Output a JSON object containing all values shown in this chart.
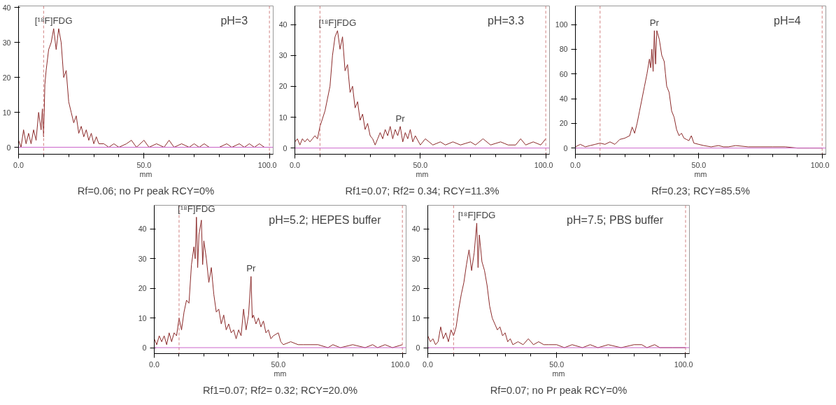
{
  "chart_data": [
    {
      "type": "line",
      "title": "pH=3",
      "xlabel": "mm",
      "xlim": [
        0,
        101.5
      ],
      "ylim": [
        -2,
        40.5
      ],
      "xticks": [
        {
          "value": 0,
          "label": "0.0"
        },
        {
          "value": 50,
          "label": "50.0"
        },
        {
          "value": 100,
          "label": "100.0"
        }
      ],
      "yticks": [
        0,
        10,
        20,
        30,
        40
      ],
      "grid": false,
      "marker": "none",
      "line_style": "solid",
      "series": [
        {
          "color": "#8b2a2a",
          "x": [
            0,
            1,
            2,
            3,
            4,
            5,
            6,
            7,
            8,
            9,
            9.5,
            10,
            10.5,
            11,
            12,
            13,
            14,
            15,
            16,
            17,
            18,
            19,
            20,
            21,
            22,
            23,
            24,
            25,
            26,
            27,
            28,
            29,
            30,
            31,
            32,
            34,
            36,
            38,
            40,
            43,
            45,
            47,
            50,
            52,
            55,
            58,
            60,
            62,
            65,
            68,
            70,
            72,
            74,
            76,
            80,
            83,
            85,
            88,
            90,
            92,
            94,
            96,
            98,
            100
          ],
          "values": [
            2,
            0,
            5,
            1,
            4,
            1,
            5,
            2,
            10,
            5,
            11,
            3,
            18,
            22,
            28,
            30,
            34,
            28,
            34,
            30,
            20,
            22,
            13,
            10,
            7,
            9,
            4,
            6,
            3,
            5,
            2,
            4,
            1,
            3,
            1,
            1,
            0,
            1,
            0,
            1,
            2,
            0,
            2,
            0,
            1,
            0,
            2,
            0,
            1,
            0,
            1,
            0,
            1,
            0,
            0,
            1,
            0,
            1,
            0,
            1,
            0,
            1,
            0,
            0
          ]
        }
      ],
      "ref_lines": [
        {
          "axis": "x",
          "value": 10,
          "color": "#d08080",
          "line_style": "dashed"
        },
        {
          "axis": "x",
          "value": 100,
          "color": "#d08080",
          "line_style": "dashed"
        },
        {
          "axis": "y",
          "value": 0,
          "color": "#cc66cc",
          "line_style": "solid"
        }
      ],
      "annotations": [
        {
          "text": "[¹⁸F]FDG",
          "x": 14,
          "y": 34
        },
        "Rf=0.06; no Pr peak RCY=0%"
      ]
    },
    {
      "type": "line",
      "title": "pH=3.3",
      "xlabel": "mm",
      "xlim": [
        0,
        101.5
      ],
      "ylim": [
        -2,
        46
      ],
      "xticks": [
        {
          "value": 0,
          "label": "0.0"
        },
        {
          "value": 50,
          "label": "50.0"
        },
        {
          "value": 100,
          "label": "100.0"
        }
      ],
      "yticks": [
        0,
        10,
        20,
        30,
        40
      ],
      "grid": false,
      "marker": "none",
      "line_style": "solid",
      "series": [
        {
          "color": "#8b2a2a",
          "x": [
            0,
            1,
            2,
            3,
            4,
            5,
            6,
            7,
            8,
            9,
            10,
            12,
            14,
            15,
            16,
            17,
            18,
            19,
            20,
            21,
            22,
            23,
            24,
            25,
            26,
            27,
            28,
            29,
            30,
            31,
            32,
            33,
            34,
            35,
            36,
            37,
            38,
            39,
            40,
            41,
            42,
            43,
            44,
            45,
            46,
            47,
            48,
            50,
            52,
            55,
            58,
            60,
            63,
            66,
            70,
            72,
            75,
            78,
            82,
            85,
            88,
            90,
            92,
            95,
            98,
            100
          ],
          "values": [
            2,
            3,
            1,
            3,
            2,
            3,
            2,
            3,
            4,
            3,
            7,
            12,
            20,
            30,
            36,
            38,
            32,
            36,
            25,
            27,
            18,
            20,
            13,
            15,
            9,
            11,
            6,
            8,
            4,
            3,
            1,
            3,
            5,
            3,
            6,
            4,
            7,
            3,
            6,
            4,
            7,
            2,
            5,
            3,
            6,
            2,
            4,
            1,
            3,
            1,
            2,
            1,
            2,
            1,
            2,
            1,
            3,
            1,
            2,
            1,
            1,
            3,
            1,
            2,
            1,
            3
          ]
        }
      ],
      "ref_lines": [
        {
          "axis": "x",
          "value": 10,
          "color": "#d08080",
          "line_style": "dashed"
        },
        {
          "axis": "x",
          "value": 100,
          "color": "#d08080",
          "line_style": "dashed"
        },
        {
          "axis": "y",
          "value": 0,
          "color": "#cc66cc",
          "line_style": "solid"
        }
      ],
      "annotations": [
        {
          "text": "[¹⁸F]FDG",
          "x": 17,
          "y": 38
        },
        {
          "text": "Pr",
          "x": 42,
          "y": 7
        },
        "Rf1=0.07; Rf2= 0.34; RCY=11.3%"
      ]
    },
    {
      "type": "line",
      "title": "pH=4",
      "xlabel": "mm",
      "xlim": [
        0,
        101.5
      ],
      "ylim": [
        -5,
        115
      ],
      "xticks": [
        {
          "value": 0,
          "label": "0.0"
        },
        {
          "value": 50,
          "label": "50.0"
        },
        {
          "value": 100,
          "label": "100.0"
        }
      ],
      "yticks": [
        0,
        20,
        40,
        60,
        80,
        100
      ],
      "grid": false,
      "marker": "none",
      "line_style": "solid",
      "series": [
        {
          "color": "#8b2a2a",
          "x": [
            0,
            2,
            4,
            6,
            8,
            10,
            12,
            14,
            16,
            18,
            20,
            22,
            23,
            24,
            25,
            26,
            27,
            28,
            29,
            30,
            30.5,
            31,
            31.5,
            32,
            32.5,
            33,
            34,
            35,
            36,
            36.5,
            37,
            38,
            39,
            40,
            41,
            42,
            43,
            44,
            45,
            46,
            47,
            48,
            50,
            52,
            55,
            58,
            60,
            62,
            65,
            70,
            75,
            80,
            85,
            90,
            95,
            100
          ],
          "values": [
            1,
            3,
            1,
            2,
            3,
            4,
            3,
            5,
            3,
            7,
            8,
            10,
            17,
            12,
            20,
            30,
            40,
            50,
            60,
            72,
            65,
            80,
            62,
            95,
            68,
            95,
            88,
            75,
            70,
            60,
            50,
            45,
            30,
            25,
            15,
            10,
            12,
            8,
            7,
            6,
            10,
            4,
            3,
            2,
            1,
            2,
            1,
            1,
            2,
            1,
            1,
            1,
            1,
            0,
            0,
            0
          ]
        }
      ],
      "ref_lines": [
        {
          "axis": "x",
          "value": 10,
          "color": "#d08080",
          "line_style": "dashed"
        },
        {
          "axis": "x",
          "value": 100,
          "color": "#d08080",
          "line_style": "dashed"
        },
        {
          "axis": "y",
          "value": 0,
          "color": "#cc66cc",
          "line_style": "solid"
        }
      ],
      "annotations": [
        {
          "text": "Pr",
          "x": 32,
          "y": 95
        },
        "Rf=0.23; RCY=85.5%"
      ]
    },
    {
      "type": "line",
      "title": "pH=5.2; HEPES buffer",
      "xlabel": "mm",
      "xlim": [
        0,
        101.5
      ],
      "ylim": [
        -2,
        48
      ],
      "xticks": [
        {
          "value": 0,
          "label": "0.0"
        },
        {
          "value": 50,
          "label": "50.0"
        },
        {
          "value": 100,
          "label": "100.0"
        }
      ],
      "yticks": [
        0,
        10,
        20,
        30,
        40
      ],
      "grid": false,
      "marker": "none",
      "line_style": "solid",
      "series": [
        {
          "color": "#8b2a2a",
          "x": [
            0,
            1,
            2,
            3,
            4,
            5,
            6,
            7,
            8,
            9,
            10,
            11,
            12,
            13,
            14,
            15,
            16,
            16.5,
            17,
            17.5,
            18,
            19,
            19.5,
            20,
            21,
            22,
            23,
            24,
            25,
            26,
            27,
            28,
            29,
            30,
            31,
            32,
            33,
            34,
            35,
            36,
            37,
            38,
            39,
            39.5,
            40,
            41,
            42,
            43,
            44,
            45,
            46,
            47,
            48,
            50,
            51,
            52,
            55,
            58,
            60,
            63,
            66,
            70,
            72,
            75,
            80,
            85,
            88,
            90,
            93,
            96,
            100
          ],
          "values": [
            3,
            1,
            4,
            2,
            4,
            1,
            5,
            2,
            5,
            4,
            10,
            6,
            12,
            16,
            15,
            28,
            34,
            30,
            44,
            27,
            38,
            43,
            28,
            36,
            30,
            22,
            27,
            18,
            12,
            13,
            8,
            11,
            6,
            8,
            5,
            6,
            3,
            6,
            4,
            13,
            6,
            11,
            24,
            10,
            11,
            8,
            10,
            7,
            9,
            5,
            6,
            3,
            4,
            5,
            2,
            1,
            2,
            1,
            1,
            1,
            1,
            0,
            1,
            0,
            1,
            0,
            1,
            0,
            1,
            0,
            1
          ]
        }
      ],
      "ref_lines": [
        {
          "axis": "x",
          "value": 10,
          "color": "#d08080",
          "line_style": "dashed"
        },
        {
          "axis": "x",
          "value": 100,
          "color": "#d08080",
          "line_style": "dashed"
        },
        {
          "axis": "y",
          "value": 0,
          "color": "#cc66cc",
          "line_style": "solid"
        }
      ],
      "annotations": [
        {
          "text": "[¹⁸F]FDG",
          "x": 17,
          "y": 44
        },
        {
          "text": "Pr",
          "x": 39,
          "y": 24
        },
        "Rf1=0.07; Rf2= 0.32; RCY=20.0%"
      ]
    },
    {
      "type": "line",
      "title": "pH=7.5; PBS buffer",
      "xlabel": "mm",
      "xlim": [
        0,
        101.5
      ],
      "ylim": [
        -2,
        48
      ],
      "xticks": [
        {
          "value": 0,
          "label": "0.0"
        },
        {
          "value": 50,
          "label": "50.0"
        },
        {
          "value": 100,
          "label": "100.0"
        }
      ],
      "yticks": [
        0,
        10,
        20,
        30,
        40
      ],
      "grid": false,
      "marker": "none",
      "line_style": "solid",
      "series": [
        {
          "color": "#8b2a2a",
          "x": [
            0,
            1,
            2,
            3,
            4,
            5,
            6,
            7,
            8,
            9,
            10,
            11,
            12,
            13,
            14,
            15,
            16,
            17,
            18,
            19,
            19.5,
            20,
            21,
            22,
            23,
            24,
            25,
            26,
            27,
            28,
            29,
            30,
            31,
            32,
            33,
            35,
            37,
            39,
            41,
            43,
            45,
            47,
            50,
            53,
            56,
            60,
            63,
            66,
            70,
            75,
            80,
            83,
            85,
            88,
            90,
            95,
            100
          ],
          "values": [
            4,
            2,
            3,
            1,
            2,
            7,
            3,
            5,
            2,
            6,
            4,
            7,
            13,
            18,
            22,
            28,
            33,
            26,
            32,
            42,
            27,
            38,
            29,
            26,
            21,
            14,
            10,
            8,
            6,
            7,
            4,
            5,
            2,
            3,
            1,
            2,
            1,
            3,
            1,
            2,
            1,
            1,
            1,
            0,
            1,
            0,
            1,
            0,
            1,
            0,
            1,
            1,
            0,
            1,
            0,
            0,
            0
          ]
        }
      ],
      "ref_lines": [
        {
          "axis": "x",
          "value": 10,
          "color": "#d08080",
          "line_style": "dashed"
        },
        {
          "axis": "x",
          "value": 100,
          "color": "#d08080",
          "line_style": "dashed"
        },
        {
          "axis": "y",
          "value": 0,
          "color": "#cc66cc",
          "line_style": "solid"
        }
      ],
      "annotations": [
        {
          "text": "[¹⁸F]FDG",
          "x": 19,
          "y": 42
        },
        "Rf=0.07; no Pr peak RCY=0%"
      ]
    }
  ]
}
